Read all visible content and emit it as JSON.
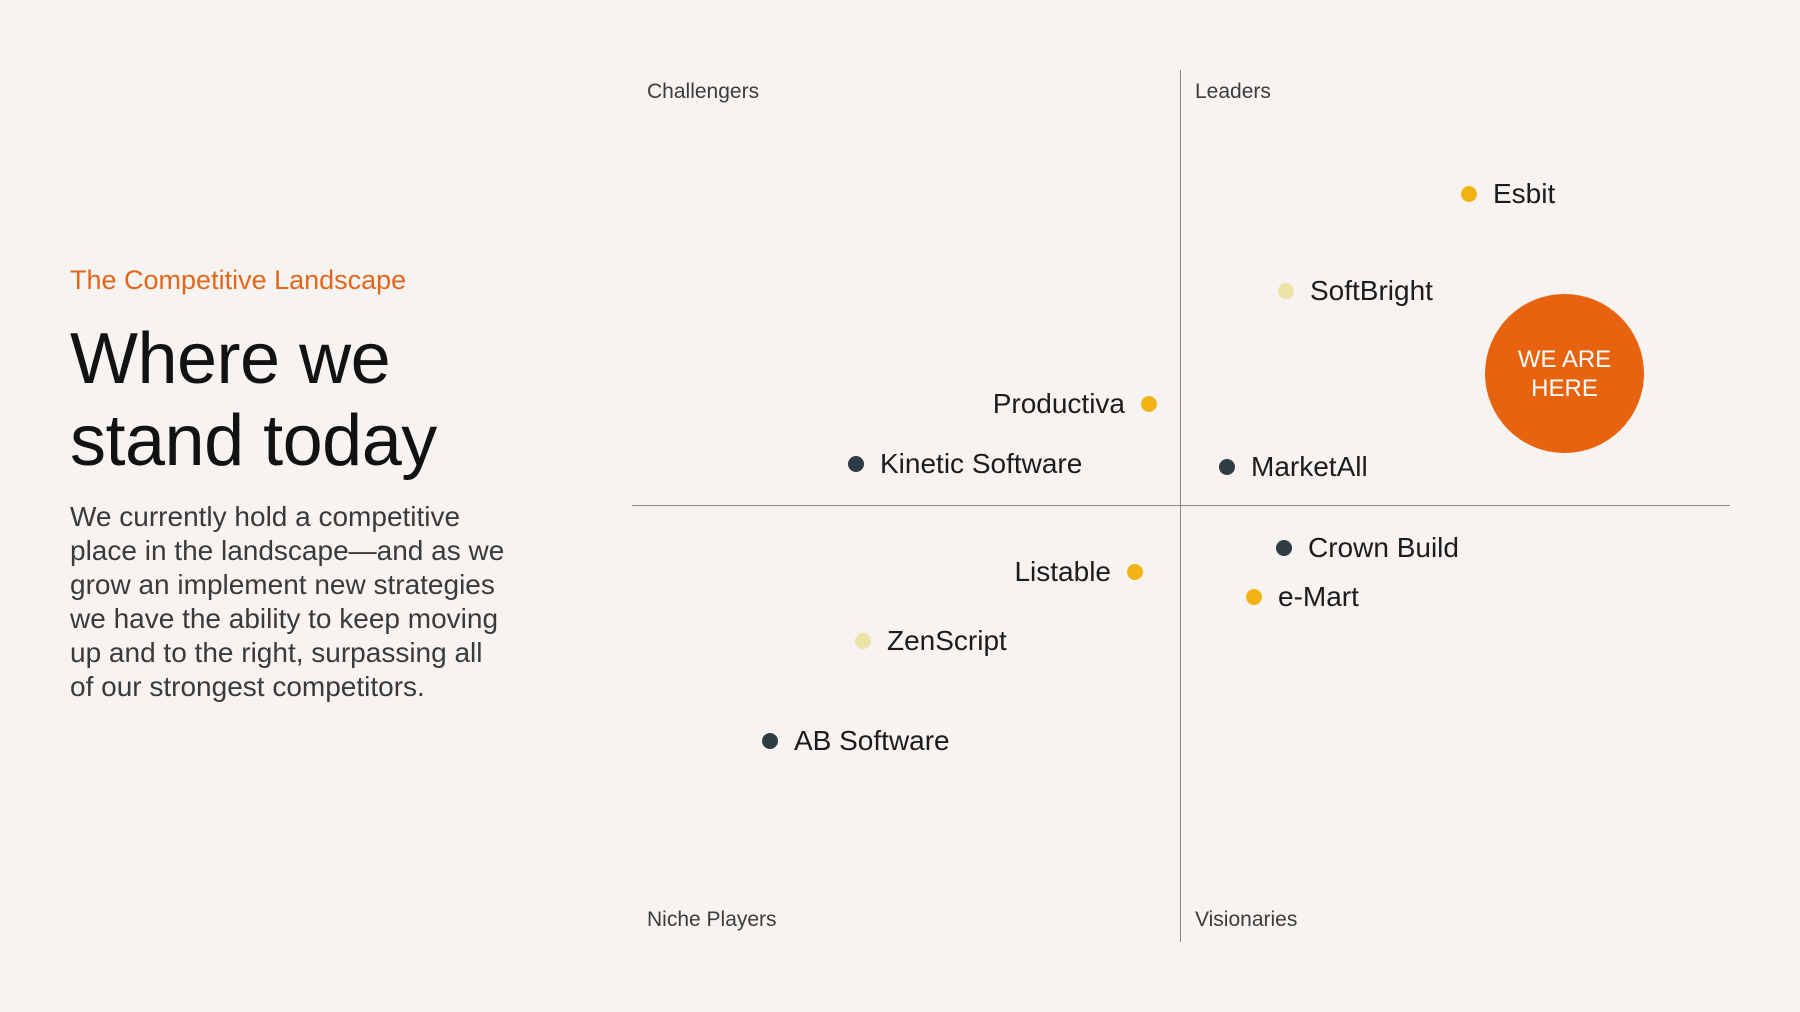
{
  "header": {
    "subtitle": "The Competitive Landscape",
    "title_line1": "Where we",
    "title_line2": "stand today",
    "body": "We currently hold a competitive place in the landscape—and as we grow an implement new strategies we have the ability to keep moving up and to the right, surpassing all of our strongest competitors."
  },
  "quadrants": {
    "top_left": "Challengers",
    "top_right": "Leaders",
    "bottom_left": "Niche Players",
    "bottom_right": "Visionaries"
  },
  "colors": {
    "accent": "#e3661b",
    "badge": "#e8630f",
    "dark": "#2e3d44",
    "yellow": "#f2b414",
    "pale": "#ece3a6"
  },
  "companies": [
    {
      "name": "Esbit",
      "color": "yellow"
    },
    {
      "name": "SoftBright",
      "color": "pale"
    },
    {
      "name": "Productiva",
      "color": "yellow"
    },
    {
      "name": "Kinetic Software",
      "color": "dark"
    },
    {
      "name": "MarketAll",
      "color": "dark"
    },
    {
      "name": "Listable",
      "color": "yellow"
    },
    {
      "name": "Crown Build",
      "color": "dark"
    },
    {
      "name": "e-Mart",
      "color": "yellow"
    },
    {
      "name": "ZenScript",
      "color": "pale"
    },
    {
      "name": "AB Software",
      "color": "dark"
    }
  ],
  "badge": {
    "label": "WE ARE HERE"
  }
}
